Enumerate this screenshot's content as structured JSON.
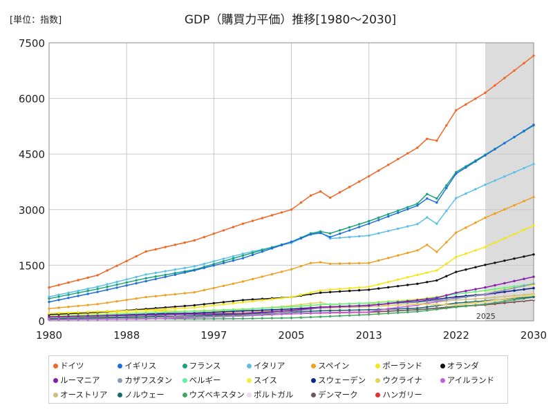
{
  "header": {
    "unit_label": "[単位：指数]",
    "title": "GDP（購買力平価）推移[1980～2030]"
  },
  "chart_data": {
    "type": "line",
    "title": "GDP（購買力平価）推移[1980～2030]",
    "unit": "[単位：指数]",
    "xlabel": "",
    "ylabel": "",
    "xlim": [
      1980,
      2030
    ],
    "ylim": [
      0,
      7500
    ],
    "x_ticks": [
      1980,
      1988,
      1997,
      2005,
      2013,
      2022,
      2030
    ],
    "y_ticks": [
      0,
      1500,
      3000,
      4500,
      6000,
      7500
    ],
    "grid": true,
    "forecast_start": 2025,
    "forecast_label": "2025",
    "legend_position": "bottom",
    "series": [
      {
        "name": "ドイツ",
        "color": "#f26522",
        "points": [
          [
            1980,
            900
          ],
          [
            1985,
            1230
          ],
          [
            1990,
            1870
          ],
          [
            1995,
            2170
          ],
          [
            2000,
            2620
          ],
          [
            2005,
            3000
          ],
          [
            2007,
            3380
          ],
          [
            2008,
            3490
          ],
          [
            2009,
            3320
          ],
          [
            2013,
            3900
          ],
          [
            2018,
            4670
          ],
          [
            2019,
            4910
          ],
          [
            2020,
            4860
          ],
          [
            2022,
            5680
          ],
          [
            2025,
            6150
          ],
          [
            2030,
            7150
          ]
        ]
      },
      {
        "name": "イギリス",
        "color": "#1e6fd9",
        "points": [
          [
            1980,
            510
          ],
          [
            1985,
            780
          ],
          [
            1990,
            1070
          ],
          [
            1995,
            1360
          ],
          [
            2000,
            1690
          ],
          [
            2005,
            2130
          ],
          [
            2007,
            2330
          ],
          [
            2008,
            2370
          ],
          [
            2009,
            2260
          ],
          [
            2013,
            2620
          ],
          [
            2018,
            3110
          ],
          [
            2019,
            3300
          ],
          [
            2020,
            3190
          ],
          [
            2022,
            3970
          ],
          [
            2025,
            4460
          ],
          [
            2030,
            5290
          ]
        ]
      },
      {
        "name": "フランス",
        "color": "#1aa37a",
        "points": [
          [
            1980,
            600
          ],
          [
            1985,
            860
          ],
          [
            1990,
            1150
          ],
          [
            1995,
            1380
          ],
          [
            2000,
            1760
          ],
          [
            2005,
            2130
          ],
          [
            2007,
            2360
          ],
          [
            2008,
            2410
          ],
          [
            2009,
            2360
          ],
          [
            2013,
            2690
          ],
          [
            2018,
            3160
          ],
          [
            2019,
            3420
          ],
          [
            2020,
            3300
          ],
          [
            2022,
            4010
          ],
          [
            2025,
            4480
          ],
          [
            2030,
            5270
          ]
        ]
      },
      {
        "name": "イタリア",
        "color": "#5bbfe8",
        "points": [
          [
            1980,
            650
          ],
          [
            1985,
            920
          ],
          [
            1990,
            1250
          ],
          [
            1995,
            1470
          ],
          [
            2000,
            1810
          ],
          [
            2005,
            2100
          ],
          [
            2007,
            2340
          ],
          [
            2008,
            2390
          ],
          [
            2009,
            2220
          ],
          [
            2013,
            2300
          ],
          [
            2018,
            2610
          ],
          [
            2019,
            2790
          ],
          [
            2020,
            2620
          ],
          [
            2022,
            3310
          ],
          [
            2025,
            3670
          ],
          [
            2030,
            4230
          ]
        ]
      },
      {
        "name": "スペイン",
        "color": "#f0a020",
        "points": [
          [
            1980,
            330
          ],
          [
            1985,
            450
          ],
          [
            1990,
            640
          ],
          [
            1995,
            770
          ],
          [
            2000,
            1060
          ],
          [
            2005,
            1390
          ],
          [
            2007,
            1560
          ],
          [
            2008,
            1580
          ],
          [
            2009,
            1540
          ],
          [
            2013,
            1560
          ],
          [
            2018,
            1900
          ],
          [
            2019,
            2050
          ],
          [
            2020,
            1860
          ],
          [
            2022,
            2380
          ],
          [
            2025,
            2780
          ],
          [
            2030,
            3340
          ]
        ]
      },
      {
        "name": "ポーランド",
        "color": "#f5e614",
        "points": [
          [
            1980,
            200
          ],
          [
            1985,
            250
          ],
          [
            1990,
            290
          ],
          [
            1995,
            360
          ],
          [
            2000,
            500
          ],
          [
            2005,
            640
          ],
          [
            2008,
            820
          ],
          [
            2013,
            920
          ],
          [
            2018,
            1240
          ],
          [
            2020,
            1360
          ],
          [
            2022,
            1720
          ],
          [
            2025,
            1990
          ],
          [
            2030,
            2570
          ]
        ]
      },
      {
        "name": "オランダ",
        "color": "#111111",
        "points": [
          [
            1980,
            170
          ],
          [
            1985,
            230
          ],
          [
            1990,
            320
          ],
          [
            1995,
            420
          ],
          [
            2000,
            560
          ],
          [
            2005,
            640
          ],
          [
            2008,
            760
          ],
          [
            2013,
            840
          ],
          [
            2018,
            1000
          ],
          [
            2020,
            1090
          ],
          [
            2022,
            1320
          ],
          [
            2025,
            1510
          ],
          [
            2030,
            1790
          ]
        ]
      },
      {
        "name": "ルーマニア",
        "color": "#8a1aa8",
        "points": [
          [
            1980,
            110
          ],
          [
            1990,
            160
          ],
          [
            2000,
            200
          ],
          [
            2005,
            280
          ],
          [
            2008,
            370
          ],
          [
            2013,
            410
          ],
          [
            2018,
            560
          ],
          [
            2020,
            620
          ],
          [
            2022,
            760
          ],
          [
            2025,
            900
          ],
          [
            2030,
            1190
          ]
        ]
      },
      {
        "name": "カザフスタン",
        "color": "#8a9aaa",
        "points": [
          [
            1980,
            100
          ],
          [
            1990,
            150
          ],
          [
            1995,
            110
          ],
          [
            2000,
            140
          ],
          [
            2005,
            250
          ],
          [
            2008,
            350
          ],
          [
            2013,
            430
          ],
          [
            2018,
            500
          ],
          [
            2022,
            600
          ],
          [
            2025,
            720
          ],
          [
            2030,
            1000
          ]
        ]
      },
      {
        "name": "ベルギー",
        "color": "#66ee99",
        "points": [
          [
            1980,
            120
          ],
          [
            1985,
            160
          ],
          [
            1990,
            210
          ],
          [
            1995,
            260
          ],
          [
            2000,
            310
          ],
          [
            2005,
            380
          ],
          [
            2008,
            440
          ],
          [
            2013,
            480
          ],
          [
            2018,
            560
          ],
          [
            2022,
            720
          ],
          [
            2025,
            820
          ],
          [
            2030,
            1000
          ]
        ]
      },
      {
        "name": "スイス",
        "color": "#f0f040",
        "points": [
          [
            1980,
            150
          ],
          [
            1985,
            190
          ],
          [
            1990,
            250
          ],
          [
            1995,
            270
          ],
          [
            2000,
            320
          ],
          [
            2005,
            370
          ],
          [
            2008,
            430
          ],
          [
            2013,
            490
          ],
          [
            2018,
            580
          ],
          [
            2022,
            720
          ],
          [
            2025,
            810
          ],
          [
            2030,
            970
          ]
        ]
      },
      {
        "name": "スウェーデン",
        "color": "#0a2a8a",
        "points": [
          [
            1980,
            110
          ],
          [
            1985,
            150
          ],
          [
            1990,
            190
          ],
          [
            1995,
            210
          ],
          [
            2000,
            270
          ],
          [
            2005,
            320
          ],
          [
            2008,
            370
          ],
          [
            2013,
            420
          ],
          [
            2018,
            520
          ],
          [
            2022,
            650
          ],
          [
            2025,
            720
          ],
          [
            2030,
            880
          ]
        ]
      },
      {
        "name": "ウクライナ",
        "color": "#e8d060",
        "points": [
          [
            1980,
            150
          ],
          [
            1990,
            300
          ],
          [
            1995,
            250
          ],
          [
            2000,
            300
          ],
          [
            2005,
            410
          ],
          [
            2008,
            500
          ],
          [
            2009,
            430
          ],
          [
            2013,
            480
          ],
          [
            2015,
            410
          ],
          [
            2018,
            450
          ],
          [
            2022,
            430
          ],
          [
            2025,
            520
          ],
          [
            2030,
            700
          ]
        ]
      },
      {
        "name": "アイルランド",
        "color": "#c060e0",
        "points": [
          [
            1980,
            30
          ],
          [
            1990,
            50
          ],
          [
            2000,
            130
          ],
          [
            2005,
            190
          ],
          [
            2008,
            220
          ],
          [
            2013,
            240
          ],
          [
            2015,
            330
          ],
          [
            2018,
            420
          ],
          [
            2022,
            620
          ],
          [
            2025,
            700
          ],
          [
            2030,
            890
          ]
        ]
      },
      {
        "name": "オーストリア",
        "color": "#d0c080",
        "points": [
          [
            1980,
            90
          ],
          [
            1985,
            120
          ],
          [
            1990,
            160
          ],
          [
            1995,
            190
          ],
          [
            2000,
            240
          ],
          [
            2005,
            290
          ],
          [
            2008,
            340
          ],
          [
            2013,
            380
          ],
          [
            2018,
            450
          ],
          [
            2022,
            560
          ],
          [
            2025,
            610
          ],
          [
            2030,
            730
          ]
        ]
      },
      {
        "name": "ノルウェー",
        "color": "#1a6870",
        "points": [
          [
            1980,
            60
          ],
          [
            1985,
            90
          ],
          [
            1990,
            110
          ],
          [
            1995,
            140
          ],
          [
            2000,
            190
          ],
          [
            2005,
            230
          ],
          [
            2008,
            270
          ],
          [
            2013,
            300
          ],
          [
            2018,
            340
          ],
          [
            2022,
            480
          ],
          [
            2025,
            540
          ],
          [
            2030,
            650
          ]
        ]
      },
      {
        "name": "ウズベキスタン",
        "color": "#40a860",
        "points": [
          [
            1980,
            40
          ],
          [
            1990,
            60
          ],
          [
            1995,
            50
          ],
          [
            2000,
            60
          ],
          [
            2005,
            80
          ],
          [
            2008,
            110
          ],
          [
            2013,
            170
          ],
          [
            2018,
            250
          ],
          [
            2022,
            370
          ],
          [
            2025,
            450
          ],
          [
            2030,
            640
          ]
        ]
      },
      {
        "name": "ポルトガル",
        "color": "#eedaee",
        "points": [
          [
            1980,
            80
          ],
          [
            1985,
            100
          ],
          [
            1990,
            150
          ],
          [
            1995,
            180
          ],
          [
            2000,
            230
          ],
          [
            2005,
            260
          ],
          [
            2008,
            290
          ],
          [
            2013,
            290
          ],
          [
            2018,
            350
          ],
          [
            2022,
            440
          ],
          [
            2025,
            490
          ],
          [
            2030,
            590
          ]
        ]
      },
      {
        "name": "デンマーク",
        "color": "#6a5a5a",
        "points": [
          [
            1980,
            60
          ],
          [
            1985,
            80
          ],
          [
            1990,
            100
          ],
          [
            1995,
            120
          ],
          [
            2000,
            160
          ],
          [
            2005,
            190
          ],
          [
            2008,
            220
          ],
          [
            2013,
            240
          ],
          [
            2018,
            300
          ],
          [
            2022,
            390
          ],
          [
            2025,
            440
          ],
          [
            2030,
            560
          ]
        ]
      },
      {
        "name": "ハンガリー",
        "color": "#e03030",
        "points": [
          [
            1980,
            80
          ],
          [
            1985,
            100
          ],
          [
            1990,
            110
          ],
          [
            1995,
            110
          ],
          [
            2000,
            150
          ],
          [
            2005,
            190
          ],
          [
            2008,
            210
          ],
          [
            2013,
            230
          ],
          [
            2018,
            300
          ],
          [
            2022,
            380
          ],
          [
            2025,
            430
          ],
          [
            2030,
            560
          ]
        ]
      }
    ]
  }
}
